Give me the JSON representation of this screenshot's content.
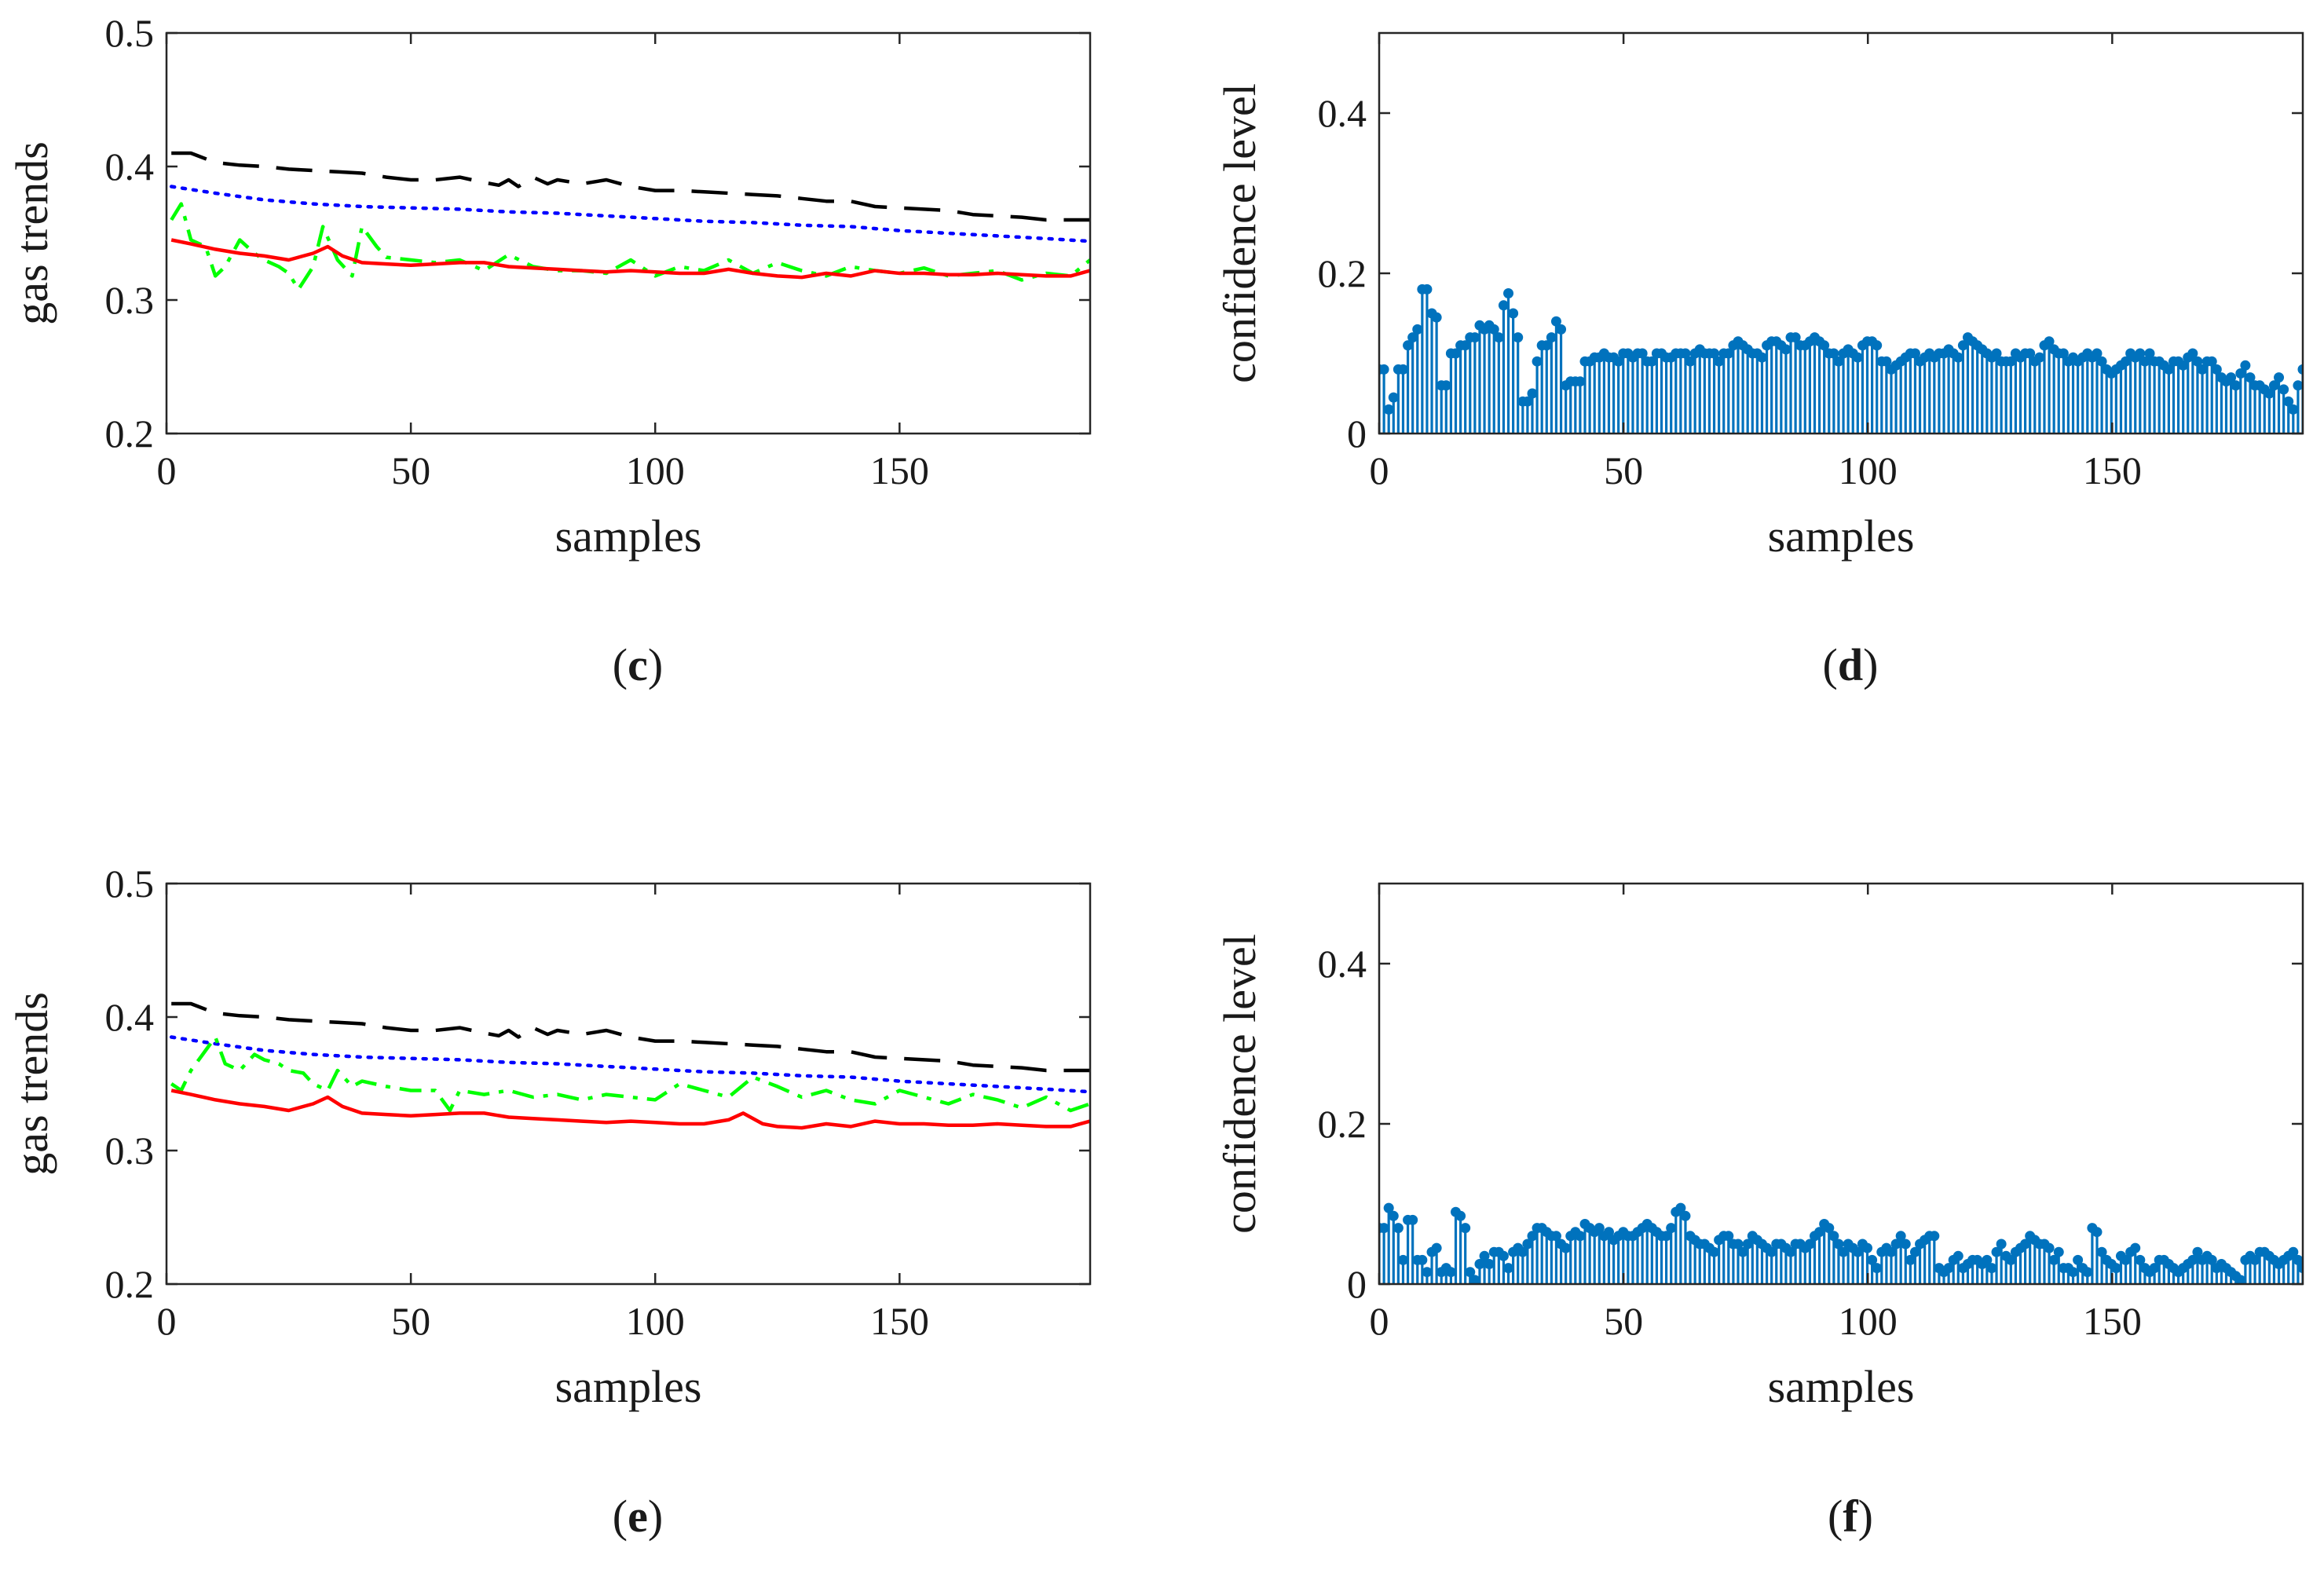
{
  "colors": {
    "black_series": "#000000",
    "blue_series": "#0000ff",
    "green_series": "#00ff00",
    "red_series": "#ff0000",
    "stem": "#0072bd"
  },
  "chart_data": [
    {
      "id": "c",
      "type": "line",
      "panel_label": "c",
      "xlabel": "samples",
      "ylabel": "gas trends",
      "xlim": [
        0,
        189
      ],
      "ylim": [
        0.2,
        0.5
      ],
      "xticks": [
        "0",
        "50",
        "100",
        "150"
      ],
      "yticks": [
        "0.2",
        "0.3",
        "0.4",
        "0.5"
      ],
      "grid": false,
      "series": [
        {
          "style": "dashed",
          "color": "#000000",
          "x": [
            1,
            5,
            10,
            15,
            20,
            25,
            30,
            35,
            40,
            45,
            50,
            55,
            60,
            65,
            68,
            70,
            72,
            75,
            78,
            80,
            85,
            90,
            95,
            100,
            105,
            110,
            115,
            120,
            125,
            130,
            135,
            140,
            145,
            150,
            155,
            160,
            165,
            170,
            175,
            180,
            185,
            189
          ],
          "y": [
            0.41,
            0.41,
            0.403,
            0.401,
            0.4,
            0.398,
            0.397,
            0.396,
            0.395,
            0.392,
            0.39,
            0.39,
            0.392,
            0.388,
            0.386,
            0.39,
            0.385,
            0.392,
            0.387,
            0.39,
            0.387,
            0.39,
            0.385,
            0.382,
            0.382,
            0.381,
            0.38,
            0.379,
            0.378,
            0.376,
            0.374,
            0.374,
            0.37,
            0.369,
            0.368,
            0.367,
            0.364,
            0.363,
            0.362,
            0.36,
            0.36,
            0.36
          ]
        },
        {
          "style": "dotted",
          "color": "#0000ff",
          "x": [
            1,
            10,
            20,
            30,
            40,
            50,
            60,
            70,
            80,
            90,
            100,
            110,
            120,
            130,
            140,
            150,
            160,
            170,
            180,
            189
          ],
          "y": [
            0.385,
            0.38,
            0.375,
            0.372,
            0.37,
            0.369,
            0.368,
            0.366,
            0.365,
            0.363,
            0.361,
            0.359,
            0.358,
            0.356,
            0.355,
            0.352,
            0.35,
            0.348,
            0.346,
            0.344
          ]
        },
        {
          "style": "dashdot",
          "color": "#00ff00",
          "x": [
            1,
            3,
            5,
            8,
            10,
            12,
            15,
            18,
            20,
            23,
            25,
            27,
            30,
            32,
            35,
            38,
            40,
            43,
            45,
            50,
            55,
            60,
            65,
            70,
            75,
            80,
            85,
            90,
            95,
            100,
            105,
            110,
            115,
            120,
            125,
            130,
            135,
            140,
            145,
            150,
            155,
            160,
            165,
            170,
            175,
            180,
            185,
            189
          ],
          "y": [
            0.36,
            0.372,
            0.345,
            0.34,
            0.318,
            0.325,
            0.345,
            0.335,
            0.33,
            0.325,
            0.32,
            0.308,
            0.325,
            0.355,
            0.33,
            0.318,
            0.355,
            0.34,
            0.332,
            0.33,
            0.328,
            0.33,
            0.322,
            0.334,
            0.325,
            0.322,
            0.322,
            0.32,
            0.33,
            0.318,
            0.325,
            0.322,
            0.33,
            0.32,
            0.328,
            0.322,
            0.318,
            0.325,
            0.322,
            0.32,
            0.324,
            0.318,
            0.32,
            0.322,
            0.315,
            0.32,
            0.318,
            0.33
          ]
        },
        {
          "style": "solid",
          "color": "#ff0000",
          "x": [
            1,
            5,
            10,
            15,
            20,
            25,
            30,
            33,
            36,
            40,
            45,
            50,
            55,
            60,
            65,
            70,
            75,
            80,
            85,
            90,
            95,
            100,
            105,
            110,
            115,
            120,
            125,
            130,
            135,
            140,
            145,
            150,
            155,
            160,
            165,
            170,
            175,
            180,
            185,
            189
          ],
          "y": [
            0.345,
            0.342,
            0.338,
            0.335,
            0.333,
            0.33,
            0.335,
            0.34,
            0.333,
            0.328,
            0.327,
            0.326,
            0.327,
            0.328,
            0.328,
            0.325,
            0.324,
            0.323,
            0.322,
            0.321,
            0.322,
            0.321,
            0.32,
            0.32,
            0.323,
            0.32,
            0.318,
            0.317,
            0.32,
            0.318,
            0.322,
            0.32,
            0.32,
            0.319,
            0.319,
            0.32,
            0.319,
            0.318,
            0.318,
            0.322
          ]
        }
      ]
    },
    {
      "id": "d",
      "type": "bar",
      "subtype": "stem",
      "panel_label": "d",
      "xlabel": "samples",
      "ylabel": "confidence level",
      "xlim": [
        0,
        189
      ],
      "ylim": [
        0,
        0.5
      ],
      "xticks": [
        "0",
        "50",
        "100",
        "150"
      ],
      "yticks": [
        "0",
        "0.2",
        "0.4"
      ],
      "grid": false,
      "color": "#0072bd",
      "values": [
        0.08,
        0.08,
        0.03,
        0.045,
        0.08,
        0.08,
        0.11,
        0.12,
        0.13,
        0.18,
        0.18,
        0.15,
        0.145,
        0.06,
        0.06,
        0.1,
        0.1,
        0.11,
        0.11,
        0.12,
        0.12,
        0.135,
        0.13,
        0.135,
        0.13,
        0.12,
        0.16,
        0.175,
        0.15,
        0.12,
        0.04,
        0.04,
        0.05,
        0.09,
        0.11,
        0.11,
        0.12,
        0.14,
        0.13,
        0.06,
        0.065,
        0.065,
        0.065,
        0.09,
        0.09,
        0.095,
        0.095,
        0.1,
        0.095,
        0.095,
        0.09,
        0.1,
        0.1,
        0.095,
        0.1,
        0.1,
        0.09,
        0.09,
        0.1,
        0.1,
        0.095,
        0.095,
        0.1,
        0.1,
        0.1,
        0.09,
        0.1,
        0.105,
        0.1,
        0.1,
        0.1,
        0.09,
        0.1,
        0.1,
        0.11,
        0.115,
        0.11,
        0.105,
        0.1,
        0.1,
        0.095,
        0.11,
        0.115,
        0.115,
        0.11,
        0.105,
        0.12,
        0.12,
        0.11,
        0.11,
        0.115,
        0.12,
        0.115,
        0.11,
        0.1,
        0.1,
        0.09,
        0.1,
        0.105,
        0.1,
        0.095,
        0.11,
        0.115,
        0.115,
        0.11,
        0.09,
        0.09,
        0.08,
        0.085,
        0.09,
        0.095,
        0.1,
        0.1,
        0.09,
        0.095,
        0.1,
        0.095,
        0.1,
        0.1,
        0.105,
        0.1,
        0.095,
        0.11,
        0.12,
        0.115,
        0.11,
        0.105,
        0.1,
        0.095,
        0.1,
        0.09,
        0.09,
        0.09,
        0.1,
        0.095,
        0.1,
        0.1,
        0.09,
        0.095,
        0.11,
        0.115,
        0.105,
        0.1,
        0.1,
        0.09,
        0.095,
        0.09,
        0.095,
        0.1,
        0.095,
        0.1,
        0.09,
        0.08,
        0.075,
        0.08,
        0.085,
        0.09,
        0.1,
        0.095,
        0.1,
        0.09,
        0.1,
        0.09,
        0.09,
        0.085,
        0.08,
        0.09,
        0.09,
        0.085,
        0.095,
        0.1,
        0.09,
        0.08,
        0.09,
        0.09,
        0.08,
        0.07,
        0.065,
        0.07,
        0.06,
        0.075,
        0.085,
        0.07,
        0.06,
        0.06,
        0.055,
        0.05,
        0.06,
        0.07,
        0.055,
        0.04,
        0.03,
        0.06,
        0.08
      ]
    },
    {
      "id": "e",
      "type": "line",
      "panel_label": "e",
      "xlabel": "samples",
      "ylabel": "gas trends",
      "xlim": [
        0,
        189
      ],
      "ylim": [
        0.2,
        0.5
      ],
      "xticks": [
        "0",
        "50",
        "100",
        "150"
      ],
      "yticks": [
        "0.2",
        "0.3",
        "0.4",
        "0.5"
      ],
      "grid": false,
      "series": [
        {
          "style": "dashed",
          "color": "#000000",
          "x": [
            1,
            5,
            10,
            15,
            20,
            25,
            30,
            35,
            40,
            45,
            50,
            55,
            60,
            65,
            68,
            70,
            72,
            75,
            78,
            80,
            85,
            90,
            95,
            100,
            105,
            110,
            115,
            120,
            125,
            130,
            135,
            140,
            145,
            150,
            155,
            160,
            165,
            170,
            175,
            180,
            185,
            189
          ],
          "y": [
            0.41,
            0.41,
            0.403,
            0.401,
            0.4,
            0.398,
            0.397,
            0.396,
            0.395,
            0.392,
            0.39,
            0.39,
            0.392,
            0.388,
            0.386,
            0.39,
            0.385,
            0.392,
            0.387,
            0.39,
            0.387,
            0.39,
            0.385,
            0.382,
            0.382,
            0.381,
            0.38,
            0.379,
            0.378,
            0.376,
            0.374,
            0.374,
            0.37,
            0.369,
            0.368,
            0.367,
            0.364,
            0.363,
            0.362,
            0.36,
            0.36,
            0.36
          ]
        },
        {
          "style": "dotted",
          "color": "#0000ff",
          "x": [
            1,
            10,
            20,
            30,
            40,
            50,
            60,
            70,
            80,
            90,
            100,
            110,
            120,
            130,
            140,
            150,
            160,
            170,
            180,
            189
          ],
          "y": [
            0.385,
            0.38,
            0.375,
            0.372,
            0.37,
            0.369,
            0.368,
            0.366,
            0.365,
            0.363,
            0.361,
            0.359,
            0.358,
            0.356,
            0.355,
            0.352,
            0.35,
            0.348,
            0.346,
            0.344
          ]
        },
        {
          "style": "dashdot",
          "color": "#00ff00",
          "x": [
            1,
            3,
            5,
            8,
            10,
            12,
            15,
            18,
            20,
            23,
            25,
            28,
            30,
            33,
            35,
            38,
            40,
            45,
            50,
            55,
            58,
            60,
            65,
            70,
            75,
            80,
            85,
            90,
            95,
            100,
            105,
            110,
            115,
            120,
            125,
            130,
            135,
            140,
            145,
            150,
            155,
            160,
            165,
            170,
            175,
            180,
            185,
            189
          ],
          "y": [
            0.35,
            0.345,
            0.36,
            0.375,
            0.385,
            0.365,
            0.36,
            0.372,
            0.368,
            0.365,
            0.36,
            0.358,
            0.35,
            0.345,
            0.36,
            0.348,
            0.352,
            0.348,
            0.345,
            0.345,
            0.33,
            0.345,
            0.342,
            0.345,
            0.34,
            0.342,
            0.338,
            0.342,
            0.34,
            0.338,
            0.35,
            0.345,
            0.34,
            0.355,
            0.348,
            0.34,
            0.345,
            0.338,
            0.335,
            0.345,
            0.34,
            0.335,
            0.342,
            0.338,
            0.332,
            0.34,
            0.33,
            0.335
          ]
        },
        {
          "style": "solid",
          "color": "#ff0000",
          "x": [
            1,
            5,
            10,
            15,
            20,
            25,
            30,
            33,
            36,
            40,
            45,
            50,
            55,
            60,
            65,
            70,
            75,
            80,
            85,
            90,
            95,
            100,
            105,
            110,
            115,
            118,
            122,
            125,
            130,
            135,
            140,
            145,
            150,
            155,
            160,
            165,
            170,
            175,
            180,
            185,
            189
          ],
          "y": [
            0.345,
            0.342,
            0.338,
            0.335,
            0.333,
            0.33,
            0.335,
            0.34,
            0.333,
            0.328,
            0.327,
            0.326,
            0.327,
            0.328,
            0.328,
            0.325,
            0.324,
            0.323,
            0.322,
            0.321,
            0.322,
            0.321,
            0.32,
            0.32,
            0.323,
            0.328,
            0.32,
            0.318,
            0.317,
            0.32,
            0.318,
            0.322,
            0.32,
            0.32,
            0.319,
            0.319,
            0.32,
            0.319,
            0.318,
            0.318,
            0.322
          ]
        }
      ]
    },
    {
      "id": "f",
      "type": "bar",
      "subtype": "stem",
      "panel_label": "f",
      "xlabel": "samples",
      "ylabel": "confidence level",
      "xlim": [
        0,
        189
      ],
      "ylim": [
        0,
        0.5
      ],
      "xticks": [
        "0",
        "50",
        "100",
        "150"
      ],
      "yticks": [
        "0",
        "0.2",
        "0.4"
      ],
      "grid": false,
      "color": "#0072bd",
      "values": [
        0.07,
        0.07,
        0.095,
        0.085,
        0.07,
        0.03,
        0.08,
        0.08,
        0.03,
        0.03,
        0.015,
        0.04,
        0.045,
        0.015,
        0.02,
        0.015,
        0.09,
        0.085,
        0.07,
        0.015,
        0.005,
        0.025,
        0.035,
        0.025,
        0.04,
        0.04,
        0.035,
        0.02,
        0.04,
        0.045,
        0.04,
        0.05,
        0.06,
        0.07,
        0.07,
        0.065,
        0.06,
        0.06,
        0.05,
        0.045,
        0.06,
        0.065,
        0.06,
        0.075,
        0.07,
        0.065,
        0.07,
        0.06,
        0.065,
        0.055,
        0.06,
        0.065,
        0.06,
        0.06,
        0.065,
        0.07,
        0.075,
        0.07,
        0.065,
        0.06,
        0.06,
        0.07,
        0.09,
        0.095,
        0.085,
        0.06,
        0.055,
        0.05,
        0.05,
        0.045,
        0.04,
        0.055,
        0.06,
        0.06,
        0.05,
        0.05,
        0.04,
        0.05,
        0.06,
        0.055,
        0.05,
        0.045,
        0.04,
        0.05,
        0.05,
        0.045,
        0.04,
        0.05,
        0.05,
        0.045,
        0.05,
        0.06,
        0.065,
        0.075,
        0.07,
        0.06,
        0.05,
        0.04,
        0.05,
        0.045,
        0.04,
        0.05,
        0.045,
        0.03,
        0.02,
        0.04,
        0.045,
        0.04,
        0.05,
        0.06,
        0.05,
        0.03,
        0.04,
        0.05,
        0.055,
        0.06,
        0.06,
        0.02,
        0.015,
        0.02,
        0.03,
        0.035,
        0.02,
        0.025,
        0.03,
        0.03,
        0.025,
        0.03,
        0.02,
        0.04,
        0.05,
        0.035,
        0.03,
        0.04,
        0.045,
        0.05,
        0.06,
        0.055,
        0.05,
        0.05,
        0.045,
        0.03,
        0.04,
        0.02,
        0.02,
        0.015,
        0.03,
        0.02,
        0.015,
        0.07,
        0.065,
        0.04,
        0.03,
        0.025,
        0.02,
        0.035,
        0.03,
        0.04,
        0.045,
        0.03,
        0.02,
        0.015,
        0.02,
        0.03,
        0.03,
        0.025,
        0.02,
        0.015,
        0.02,
        0.025,
        0.03,
        0.04,
        0.03,
        0.035,
        0.03,
        0.02,
        0.025,
        0.02,
        0.015,
        0.01,
        0.005,
        0.03,
        0.035,
        0.03,
        0.04,
        0.04,
        0.035,
        0.03,
        0.025,
        0.03,
        0.035,
        0.04,
        0.03,
        0.02
      ]
    }
  ]
}
